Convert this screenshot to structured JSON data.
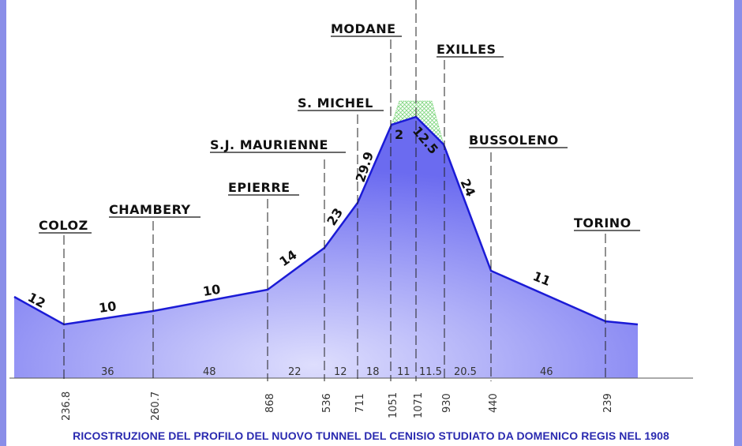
{
  "stations": [
    {
      "id": "coloz",
      "name": "COLOZ"
    },
    {
      "id": "chambery",
      "name": "CHAMBERY"
    },
    {
      "id": "epierre",
      "name": "EPIERRE"
    },
    {
      "id": "sjm",
      "name": "S.J. MAURIENNE"
    },
    {
      "id": "smichel",
      "name": "S. MICHEL"
    },
    {
      "id": "modane",
      "name": "MODANE"
    },
    {
      "id": "exilles",
      "name": "EXILLES"
    },
    {
      "id": "bussoleno",
      "name": "BUSSOLENO"
    },
    {
      "id": "torino",
      "name": "TORINO"
    }
  ],
  "altitudes": [
    "236.8",
    "260.7",
    "868",
    "536",
    "711",
    "1051",
    "1071",
    "930",
    "440",
    "239"
  ],
  "segment_lengths": [
    "36",
    "48",
    "22",
    "12",
    "18",
    "11",
    "11.5",
    "20.5",
    "46"
  ],
  "gradients": [
    "12",
    "10",
    "10",
    "14",
    "23",
    "29.9",
    "2",
    "12.5",
    "24",
    "11"
  ],
  "caption": "RICOSTRUZIONE DEL PROFILO DEL NUOVO TUNNEL DEL CENISIO STUDIATO DA DOMENICO REGIS NEL 1908",
  "colors": {
    "profile_line": "#1b1bd6",
    "fill_top": "#6b6bf0",
    "fill_bottom": "#d8d8fc",
    "frame": "#8a8ee8",
    "caption": "#2a2ab0",
    "summit_hatch": "#7cd67c"
  }
}
